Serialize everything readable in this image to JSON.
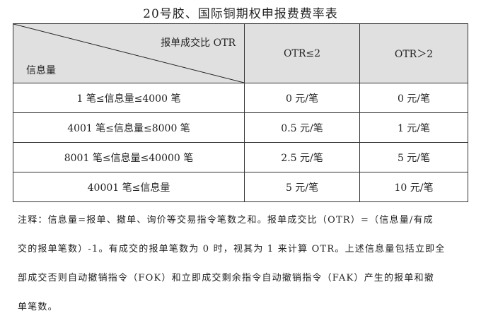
{
  "title": "20号胶、国际铜期权申报费费率表",
  "table": {
    "corner_top": "报单成交比 OTR",
    "corner_bottom": "信息量",
    "headers": [
      "OTR≤2",
      "OTR＞2"
    ],
    "rows": [
      {
        "label": "1 笔≤信息量≤4000 笔",
        "values": [
          "0 元/笔",
          "0 元/笔"
        ]
      },
      {
        "label": "4001 笔≤信息量≤8000 笔",
        "values": [
          "0.5 元/笔",
          "1 元/笔"
        ]
      },
      {
        "label": "8001 笔≤信息量≤40000 笔",
        "values": [
          "2.5 元/笔",
          "5 元/笔"
        ]
      },
      {
        "label": "40001 笔≤信息量",
        "values": [
          "5 元/笔",
          "10 元/笔"
        ]
      }
    ]
  },
  "note_lines": [
    "注释：信息量=报单、撤单、询价等交易指令笔数之和。报单成交比（OTR）=（信息量/有成",
    "交的报单笔数）-1。有成交的报单笔数为 0 时，视其为 1 来计算 OTR。上述信息量包括立即全",
    "部成交否则自动撤销指令（FOK）和立即成交剩余指令自动撤销指令（FAK）产生的报单和撤",
    "单笔数。"
  ]
}
